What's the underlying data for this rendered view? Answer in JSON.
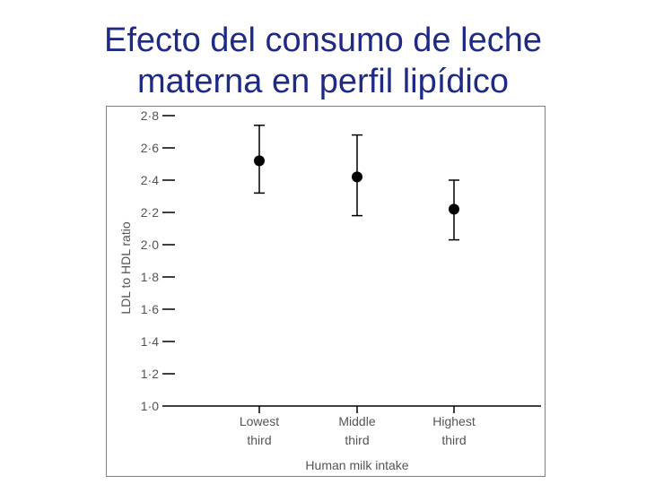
{
  "slide": {
    "title_line1": "Efecto del consumo de leche",
    "title_line2": "materna en perfil lipídico"
  },
  "colors": {
    "title": "#1f2a86",
    "marks": "#000000",
    "text": "#555555"
  },
  "chart_data": {
    "type": "scatter",
    "xlabel": "Human milk intake",
    "ylabel": "LDL to HDL ratio",
    "ylim": [
      1.0,
      2.8
    ],
    "y_ticks": [
      "1·0",
      "1·2",
      "1·4",
      "1·6",
      "1·8",
      "2·0",
      "2·2",
      "2·4",
      "2·6",
      "2·8"
    ],
    "y_tick_values": [
      1.0,
      1.2,
      1.4,
      1.6,
      1.8,
      2.0,
      2.2,
      2.4,
      2.6,
      2.8
    ],
    "categories": [
      {
        "line1": "Lowest",
        "line2": "third"
      },
      {
        "line1": "Middle",
        "line2": "third"
      },
      {
        "line1": "Highest",
        "line2": "third"
      }
    ],
    "values": [
      2.52,
      2.42,
      2.22
    ],
    "error_low": [
      2.32,
      2.18,
      2.03
    ],
    "error_high": [
      2.74,
      2.68,
      2.4
    ],
    "grid": false,
    "legend": "none"
  }
}
